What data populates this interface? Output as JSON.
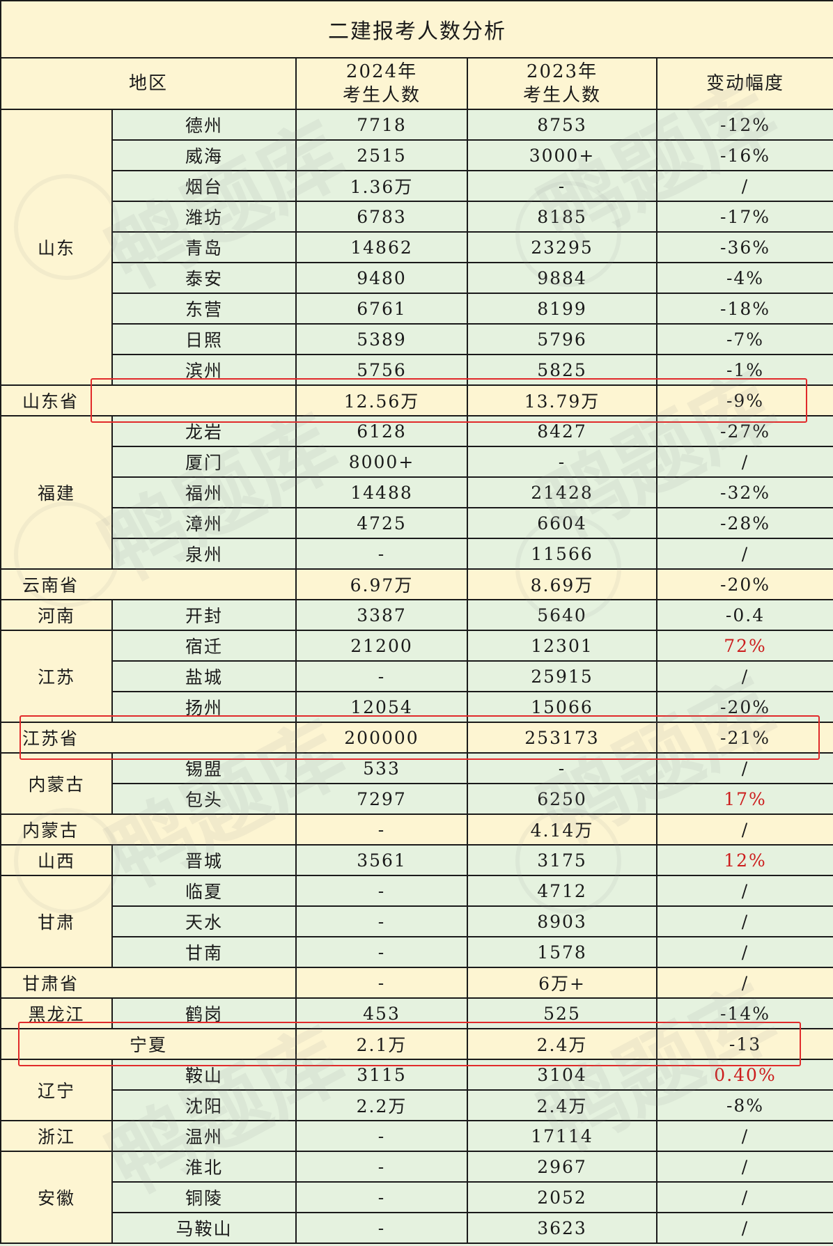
{
  "title": "二建报考人数分析",
  "header": {
    "region": "地区",
    "y2024": "2024年\n考生人数",
    "y2023": "2023年\n考生人数",
    "change": "变动幅度"
  },
  "watermark": "鸭题库",
  "colors": {
    "cream": "#fdf5d2",
    "green": "#e5f2df",
    "red_text": "#cc1d1d",
    "highlight_box": "#e12a2a"
  },
  "rows": [
    {
      "province": "山东",
      "rowspan": 9,
      "city": "德州",
      "v2024": "7718",
      "v2023": "8753",
      "change": "-12%"
    },
    {
      "city": "威海",
      "v2024": "2515",
      "v2023": "3000+",
      "change": "-16%"
    },
    {
      "city": "烟台",
      "v2024": "1.36万",
      "v2023": "-",
      "change": "/"
    },
    {
      "city": "潍坊",
      "v2024": "6783",
      "v2023": "8185",
      "change": "-17%"
    },
    {
      "city": "青岛",
      "v2024": "14862",
      "v2023": "23295",
      "change": "-36%"
    },
    {
      "city": "泰安",
      "v2024": "9480",
      "v2023": "9884",
      "change": "-4%"
    },
    {
      "city": "东营",
      "v2024": "6761",
      "v2023": "8199",
      "change": "-18%"
    },
    {
      "city": "日照",
      "v2024": "5389",
      "v2023": "5796",
      "change": "-7%"
    },
    {
      "city": "滨州",
      "v2024": "5756",
      "v2023": "5825",
      "change": "-1%"
    },
    {
      "total": "山东省",
      "v2024": "12.56万",
      "v2023": "13.79万",
      "change": "-9%",
      "box": true
    },
    {
      "province": "福建",
      "rowspan": 5,
      "city": "龙岩",
      "v2024": "6128",
      "v2023": "8427",
      "change": "-27%"
    },
    {
      "city": "厦门",
      "v2024": "8000+",
      "v2023": "-",
      "change": "/"
    },
    {
      "city": "福州",
      "v2024": "14488",
      "v2023": "21428",
      "change": "-32%"
    },
    {
      "city": "漳州",
      "v2024": "4725",
      "v2023": "6604",
      "change": "-28%"
    },
    {
      "city": "泉州",
      "v2024": "-",
      "v2023": "11566",
      "change": "/"
    },
    {
      "total": "云南省",
      "v2024": "6.97万",
      "v2023": "8.69万",
      "change": "-20%"
    },
    {
      "province": "河南",
      "rowspan": 1,
      "city": "开封",
      "v2024": "3387",
      "v2023": "5640",
      "change": "-0.4"
    },
    {
      "province": "江苏",
      "rowspan": 3,
      "city": "宿迁",
      "v2024": "21200",
      "v2023": "12301",
      "change": "72%",
      "red": true
    },
    {
      "city": "盐城",
      "v2024": "-",
      "v2023": "25915",
      "change": "/"
    },
    {
      "city": "扬州",
      "v2024": "12054",
      "v2023": "15066",
      "change": "-20%"
    },
    {
      "total": "江苏省",
      "v2024": "200000",
      "v2023": "253173",
      "change": "-21%",
      "box": true
    },
    {
      "province": "内蒙古",
      "rowspan": 2,
      "city": "锡盟",
      "v2024": "533",
      "v2023": "-",
      "change": "/"
    },
    {
      "city": "包头",
      "v2024": "7297",
      "v2023": "6250",
      "change": "17%",
      "red": true
    },
    {
      "total": "内蒙古",
      "v2024": "-",
      "v2023": "4.14万",
      "change": "/"
    },
    {
      "province": "山西",
      "rowspan": 1,
      "city": "晋城",
      "v2024": "3561",
      "v2023": "3175",
      "change": "12%",
      "red": true
    },
    {
      "province": "甘肃",
      "rowspan": 3,
      "city": "临夏",
      "v2024": "-",
      "v2023": "4712",
      "change": "/"
    },
    {
      "city": "天水",
      "v2024": "-",
      "v2023": "8903",
      "change": "/"
    },
    {
      "city": "甘南",
      "v2024": "-",
      "v2023": "1578",
      "change": "/"
    },
    {
      "total": "甘肃省",
      "v2024": "-",
      "v2023": "6万+",
      "change": "/"
    },
    {
      "province": "黑龙江",
      "rowspan": 1,
      "city": "鹤岗",
      "v2024": "453",
      "v2023": "525",
      "change": "-14%"
    },
    {
      "total": "宁夏",
      "center": true,
      "v2024": "2.1万",
      "v2023": "2.4万",
      "change": "-13",
      "box": true
    },
    {
      "province": "辽宁",
      "rowspan": 2,
      "city": "鞍山",
      "v2024": "3115",
      "v2023": "3104",
      "change": "0.40%",
      "red": true
    },
    {
      "city": "沈阳",
      "v2024": "2.2万",
      "v2023": "2.4万",
      "change": "-8%"
    },
    {
      "province": "浙江",
      "rowspan": 1,
      "city": "温州",
      "v2024": "-",
      "v2023": "17114",
      "change": "/"
    },
    {
      "province": "安徽",
      "rowspan": 3,
      "city": "淮北",
      "v2024": "-",
      "v2023": "2967",
      "change": "/"
    },
    {
      "city": "铜陵",
      "v2024": "-",
      "v2023": "2052",
      "change": "/"
    },
    {
      "city": "马鞍山",
      "v2024": "-",
      "v2023": "3623",
      "change": "/"
    }
  ]
}
